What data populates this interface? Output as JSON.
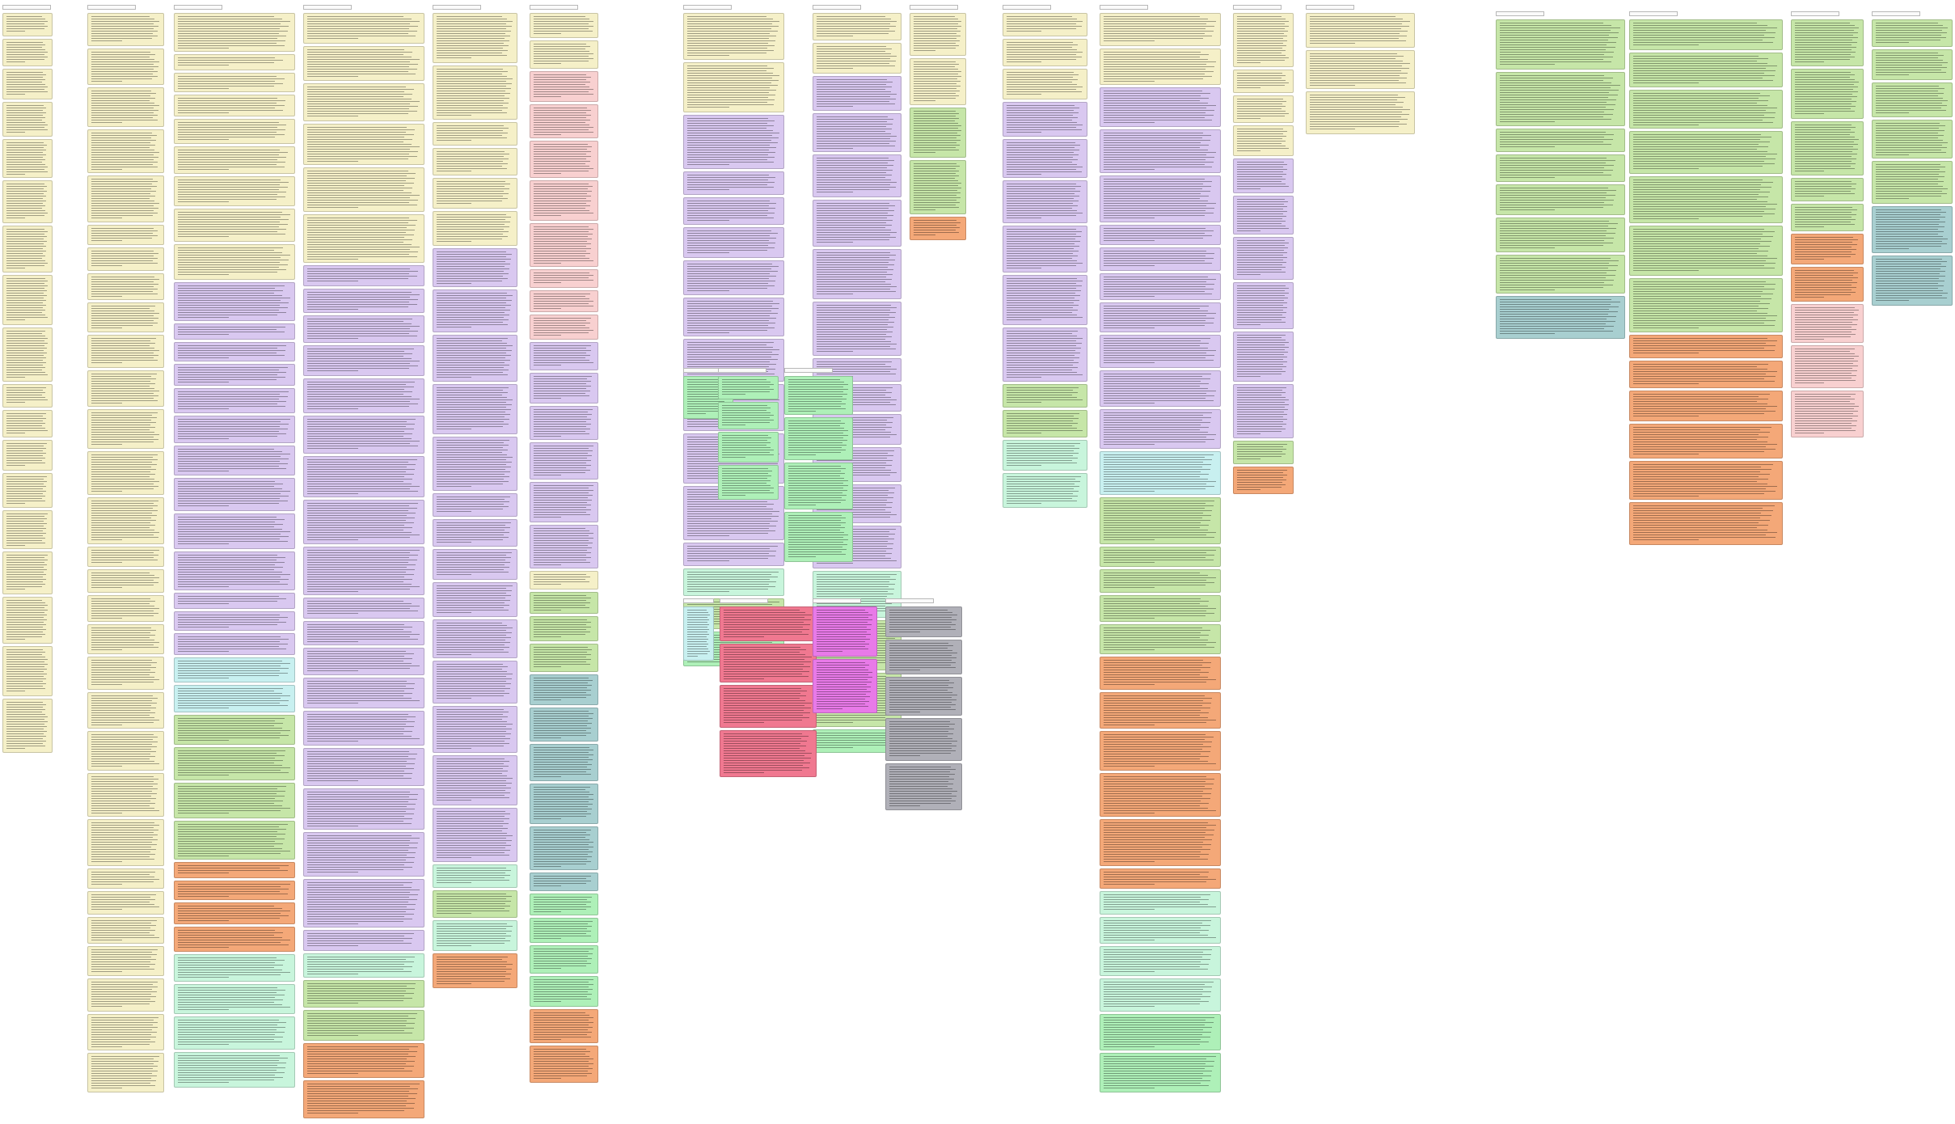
{
  "board": {
    "columns": [
      {
        "cards": [
          "#f5f0c8",
          "#f5f0c8",
          "#f5f0c8",
          "#f5f0c8",
          "#f5f0c8",
          "#f5f0c8",
          "#f5f0c8",
          "#f5f0c8",
          "#f5f0c8",
          "#f5f0c8",
          "#f5f0c8",
          "#f5f0c8",
          "#f5f0c8",
          "#f5f0c8",
          "#f5f0c8",
          "#f5f0c8",
          "#f5f0c8",
          "#f5f0c8"
        ]
      },
      {
        "cards": [
          "#f5f0c8",
          "#f5f0c8",
          "#f5f0c8",
          "#f5f0c8",
          "#f5f0c8",
          "#f5f0c8",
          "#f5f0c8",
          "#f5f0c8",
          "#f5f0c8",
          "#f5f0c8",
          "#f5f0c8",
          "#f5f0c8",
          "#f5f0c8",
          "#f5f0c8",
          "#f5f0c8",
          "#f5f0c8",
          "#f5f0c8",
          "#f5f0c8",
          "#f5f0c8",
          "#f5f0c8",
          "#f5f0c8",
          "#f5f0c8",
          "#f5f0c8",
          "#f5f0c8",
          "#f5f0c8",
          "#f5f0c8",
          "#f5f0c8",
          "#f5f0c8",
          "#f5f0c8",
          "#f5f0c8",
          "#e87ae8"
        ]
      },
      {
        "cards": [
          "#f5f0c8",
          "#f5f0c8",
          "#f5f0c8",
          "#f5f0c8",
          "#f5f0c8",
          "#f5f0c8",
          "#f5f0c8",
          "#f5f0c8",
          "#f5f0c8",
          "#d9c8f0",
          "#d9c8f0",
          "#d9c8f0",
          "#d9c8f0",
          "#d9c8f0",
          "#d9c8f0",
          "#d9c8f0",
          "#d9c8f0",
          "#d9c8f0",
          "#d9c8f0",
          "#d9c8f0",
          "#d9c8f0",
          "#d9c8f0",
          "#c8f0f0",
          "#c8f0f0",
          "#c6e6a8",
          "#c6e6a8",
          "#c6e6a8",
          "#c6e6a8",
          "#f4a878",
          "#f4a878",
          "#f4a878",
          "#f4a878",
          "#c8f5dc",
          "#c8f5dc",
          "#c8f5dc",
          "#c8f5dc",
          "#e87ae8"
        ]
      },
      {
        "cards": [
          "#f5f0c8",
          "#f5f0c8",
          "#f5f0c8",
          "#f5f0c8",
          "#f5f0c8",
          "#f5f0c8",
          "#d9c8f0",
          "#d9c8f0",
          "#d9c8f0",
          "#d9c8f0",
          "#d9c8f0",
          "#d9c8f0",
          "#d9c8f0",
          "#d9c8f0",
          "#d9c8f0",
          "#d9c8f0",
          "#d9c8f0",
          "#d9c8f0",
          "#d9c8f0",
          "#d9c8f0",
          "#d9c8f0",
          "#d9c8f0",
          "#d9c8f0",
          "#d9c8f0",
          "#d9c8f0",
          "#c8f5dc",
          "#c6e6a8",
          "#c6e6a8",
          "#f4a878",
          "#f4a878"
        ]
      },
      {
        "cards": [
          "#f5f0c8",
          "#f5f0c8",
          "#f5f0c8",
          "#f5f0c8",
          "#f5f0c8",
          "#f5f0c8",
          "#d9c8f0",
          "#d9c8f0",
          "#d9c8f0",
          "#d9c8f0",
          "#d9c8f0",
          "#d9c8f0",
          "#d9c8f0",
          "#d9c8f0",
          "#d9c8f0",
          "#d9c8f0",
          "#d9c8f0",
          "#d9c8f0",
          "#d9c8f0",
          "#d9c8f0",
          "#c8f5dc",
          "#c6e6a8",
          "#c8f5dc",
          "#f4a878"
        ]
      },
      {
        "cards": [
          "#f5f0c8",
          "#f5f0c8",
          "#f8d0d0",
          "#f8d0d0",
          "#f8d0d0",
          "#f8d0d0",
          "#f8d0d0",
          "#f8d0d0",
          "#f8d0d0",
          "#f8d0d0",
          "#d9c8f0",
          "#d9c8f0",
          "#d9c8f0",
          "#d9c8f0",
          "#d9c8f0",
          "#d9c8f0",
          "#f5f0c8",
          "#c6e6a8",
          "#c6e6a8",
          "#c6e6a8",
          "#a8cfd0",
          "#a8cfd0",
          "#a8cfd0",
          "#a8cfd0",
          "#a8cfd0",
          "#a8cfd0",
          "#aef0b8",
          "#aef0b8",
          "#aef0b8",
          "#aef0b8",
          "#f4a878",
          "#f4a878",
          "#f4a878"
        ]
      },
      {
        "cards": [
          "#f5f0c8",
          "#f5f0c8",
          "#d9c8f0",
          "#d9c8f0",
          "#d9c8f0",
          "#d9c8f0",
          "#d9c8f0",
          "#d9c8f0",
          "#d9c8f0",
          "#d9c8f0",
          "#d9c8f0",
          "#d9c8f0",
          "#d9c8f0",
          "#c8f5dc",
          "#c6e6a8",
          "#aef0b8"
        ]
      },
      {
        "cards": [
          "#f5f0c8",
          "#f5f0c8",
          "#d9c8f0",
          "#d9c8f0",
          "#d9c8f0",
          "#d9c8f0",
          "#d9c8f0",
          "#d9c8f0",
          "#d9c8f0",
          "#d9c8f0",
          "#d9c8f0",
          "#d9c8f0",
          "#d9c8f0",
          "#d9c8f0",
          "#c8f5dc",
          "#c6e6a8",
          "#c6e6a8",
          "#aef0b8"
        ]
      },
      {
        "cards": [
          "#f5f0c8",
          "#f5f0c8",
          "#c6e6a8",
          "#c6e6a8",
          "#f4a878"
        ]
      },
      {
        "cards": [
          "#f5f0c8",
          "#f5f0c8",
          "#f5f0c8",
          "#d9c8f0",
          "#d9c8f0",
          "#d9c8f0",
          "#d9c8f0",
          "#d9c8f0",
          "#d9c8f0",
          "#c6e6a8",
          "#c6e6a8",
          "#c8f5dc",
          "#c8f5dc"
        ]
      },
      {
        "cards": [
          "#f5f0c8",
          "#f5f0c8",
          "#d9c8f0",
          "#d9c8f0",
          "#d9c8f0",
          "#d9c8f0",
          "#d9c8f0",
          "#d9c8f0",
          "#d9c8f0",
          "#d9c8f0",
          "#d9c8f0",
          "#d9c8f0",
          "#c8f0f0",
          "#c6e6a8",
          "#c6e6a8",
          "#c6e6a8",
          "#c6e6a8",
          "#c6e6a8",
          "#f4a878",
          "#f4a878",
          "#f4a878",
          "#f4a878",
          "#f4a878",
          "#f4a878",
          "#c8f5dc",
          "#c8f5dc",
          "#c8f5dc",
          "#c8f5dc",
          "#aef0b8",
          "#aef0b8",
          "#e87ae8"
        ]
      },
      {
        "cards": [
          "#f5f0c8",
          "#f5f0c8",
          "#f5f0c8",
          "#f5f0c8",
          "#d9c8f0",
          "#d9c8f0",
          "#d9c8f0",
          "#d9c8f0",
          "#d9c8f0",
          "#d9c8f0",
          "#c6e6a8",
          "#f4a878"
        ]
      },
      {
        "cards": [
          "#f5f0c8",
          "#f5f0c8",
          "#f5f0c8"
        ]
      },
      {
        "cards": [
          "#c6e6a8",
          "#c6e6a8",
          "#c6e6a8",
          "#c6e6a8",
          "#c6e6a8",
          "#c6e6a8",
          "#c6e6a8",
          "#a8cfd0"
        ]
      },
      {
        "cards": [
          "#c6e6a8",
          "#c6e6a8",
          "#c6e6a8",
          "#c6e6a8",
          "#c6e6a8",
          "#c6e6a8",
          "#c6e6a8",
          "#f4a878",
          "#f4a878",
          "#f4a878",
          "#f4a878",
          "#f4a878",
          "#f4a878"
        ]
      },
      {
        "cards": [
          "#c6e6a8",
          "#c6e6a8",
          "#c6e6a8",
          "#c6e6a8",
          "#c6e6a8",
          "#f4a878",
          "#f4a878",
          "#f8d0d0",
          "#f8d0d0",
          "#f8d0d0"
        ]
      },
      {
        "cards": [
          "#c6e6a8",
          "#c6e6a8",
          "#c6e6a8",
          "#c6e6a8",
          "#c6e6a8",
          "#a8cfd0",
          "#a8cfd0"
        ]
      },
      {
        "cards": [
          "#aef0b8"
        ]
      },
      {
        "cards": [
          "#aef0b8",
          "#aef0b8",
          "#aef0b8",
          "#aef0b8"
        ]
      },
      {
        "cards": [
          "#aef0b8",
          "#aef0b8",
          "#aef0b8",
          "#aef0b8"
        ]
      },
      {
        "cards": [
          "#c8f0f0"
        ]
      },
      {
        "cards": [
          "#f07890",
          "#f07890",
          "#f07890",
          "#f07890"
        ]
      },
      {
        "cards": [
          "#e87ae8",
          "#e87ae8"
        ]
      },
      {
        "cards": [
          "#b0b0b8",
          "#b0b0b8",
          "#b0b0b8",
          "#b0b0b8",
          "#b0b0b8"
        ]
      }
    ]
  }
}
